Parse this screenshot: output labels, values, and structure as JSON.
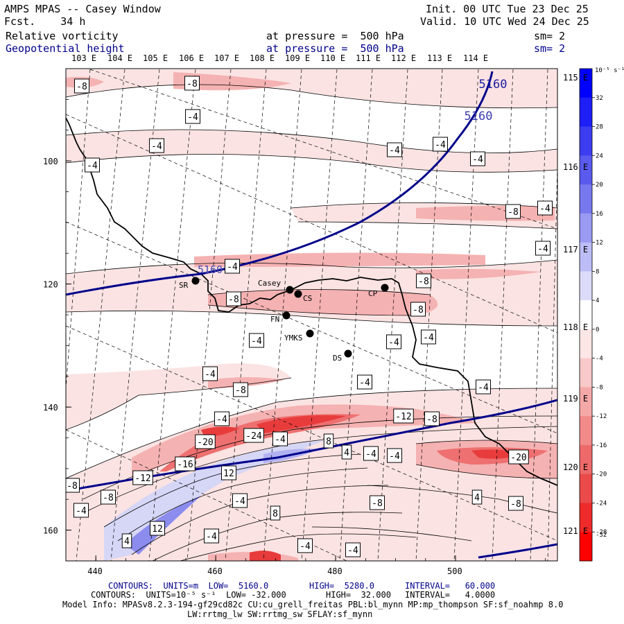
{
  "header": {
    "title": "AMPS MPAS -- Casey Window",
    "fcst": "Fcst.    34 h",
    "init": "Init. 00 UTC Tue 23 Dec 25",
    "valid": "Valid. 10 UTC Wed 24 Dec 25",
    "field1": "Relative vorticity",
    "field2": "Geopotential height",
    "pressure1": "at pressure =  500 hPa",
    "pressure2": "at pressure =  500 hPa",
    "sm1": "sm= 2",
    "sm2": "sm= 2"
  },
  "top_lon_labels": [
    "103 E",
    "104 E",
    "105 E",
    "106 E",
    "107 E",
    "108 E",
    "109 E",
    "110 E",
    "111 E",
    "112 E",
    "113 E",
    "114 E"
  ],
  "right_lon_labels": [
    "115 E",
    "116 E",
    "117 E",
    "118 E",
    "119 E",
    "120 E",
    "121 E"
  ],
  "y_ticks": [
    "100",
    "120",
    "140",
    "160"
  ],
  "x_ticks": [
    "440",
    "460",
    "480",
    "500"
  ],
  "stations": [
    "SR",
    "Casey",
    "CS",
    "CP",
    "FN",
    "YMKS",
    "DS"
  ],
  "height_labels": [
    "5160",
    "5160",
    "5160"
  ],
  "vort_labels": [
    "-8",
    "-8",
    "-4",
    "-4",
    "-4",
    "-4",
    "-4",
    "-4",
    "-8",
    "-4",
    "-4",
    "-4",
    "-8",
    "-8",
    "-8",
    "-4",
    "-4",
    "-4",
    "-4",
    "-4",
    "-8",
    "-4",
    "-4",
    "-12",
    "-8",
    "-20",
    "-24",
    "-4",
    "8",
    "4",
    "-4",
    "-4",
    "-20",
    "-16",
    "-12",
    "12",
    "-8",
    "-8",
    "4",
    "-8",
    "-4",
    "-4",
    "8",
    "12",
    "-4",
    "4",
    "-4",
    "-4",
    "-8"
  ],
  "colorbar": {
    "unit": "10⁻⁵ s⁻¹",
    "labels": [
      "32",
      "28",
      "24",
      "20",
      "16",
      "12",
      "8",
      "4",
      "0",
      "-4",
      "-8",
      "-12",
      "-16",
      "-20",
      "-24",
      "-28",
      "-32"
    ],
    "colors": [
      "#0000ff",
      "#1e1ef7",
      "#3c3cf0",
      "#5a5aee",
      "#7878ee",
      "#9a9af2",
      "#bcbcf7",
      "#dcdcfa",
      "#ffffff",
      "#fce6e6",
      "#f9c8c8",
      "#f5a8a8",
      "#f28a8a",
      "#ee6a6a",
      "#ea4a4a",
      "#ee2a2a",
      "#ff0000"
    ]
  },
  "footer": {
    "line1_a": "CONTOURS:  UNITS=m  LOW=  5160.0",
    "line1_b": "HIGH=  5280.0",
    "line1_c": "INTERVAL=   60.000",
    "line2_a": "CONTOURS:  UNITS=10⁻⁵ s⁻¹  LOW= -32.000",
    "line2_b": "HIGH=  32.000",
    "line2_c": "INTERVAL=   4.0000",
    "model1": "Model Info: MPASv8.2.3-194-gf29cd82c CU:cu_grell_freitas PBL:bl_mynn MP:mp_thompson SF:sf_noahmp 8.0",
    "model2": "LW:rrtmg_lw SW:rrtmg_sw SFLAY:sf_mynn"
  },
  "chart_data": {
    "type": "contour_map",
    "title": "AMPS MPAS -- Casey Window",
    "fields": [
      {
        "name": "Relative vorticity",
        "level": "500 hPa",
        "units": "10^-5 s^-1",
        "low": -32,
        "high": 32,
        "interval": 4,
        "smoothing": 2
      },
      {
        "name": "Geopotential height",
        "level": "500 hPa",
        "units": "m",
        "low": 5160,
        "high": 5280,
        "interval": 60,
        "smoothing": 2
      }
    ],
    "x_axis": {
      "ticks": [
        440,
        460,
        480,
        500
      ],
      "range": [
        435,
        517
      ]
    },
    "y_axis": {
      "ticks": [
        100,
        120,
        140,
        160
      ],
      "range": [
        85,
        165
      ],
      "inverted": true
    },
    "init": "00 UTC Tue 23 Dec 25",
    "valid": "10 UTC Wed 24 Dec 25",
    "forecast_hours": 34
  }
}
